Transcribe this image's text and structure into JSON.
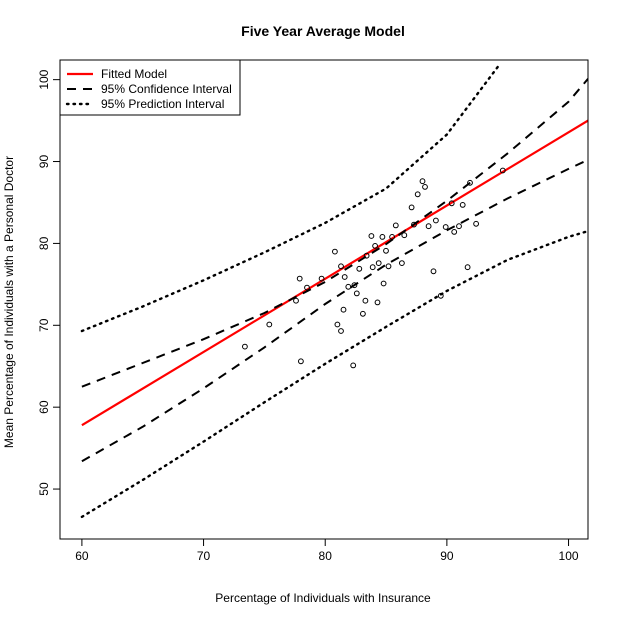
{
  "chart_data": {
    "type": "scatter",
    "title": "Five Year Average Model",
    "xlabel": "Percentage of Individuals with Insurance",
    "ylabel": "Mean Percentage of Individuals with a Personal Doctor",
    "xlim": [
      58.2,
      101.6
    ],
    "ylim": [
      43.9,
      102.4
    ],
    "xticks": [
      60,
      70,
      80,
      90,
      100
    ],
    "yticks": [
      50,
      60,
      70,
      80,
      90,
      100
    ],
    "grid": false,
    "legend_position": "top-left",
    "legend": [
      {
        "label": "Fitted Model",
        "style": "solid",
        "color": "#ff0000"
      },
      {
        "label": "95% Confidence Interval",
        "style": "dashed",
        "color": "#000000"
      },
      {
        "label": "95% Prediction Interval",
        "style": "dotted",
        "color": "#000000"
      }
    ],
    "points": {
      "x": [
        73.4,
        75.4,
        77.6,
        77.9,
        78.0,
        78.5,
        79.7,
        80.8,
        81.0,
        81.3,
        81.3,
        81.5,
        81.6,
        81.9,
        82.3,
        82.4,
        82.6,
        82.8,
        83.1,
        83.3,
        83.4,
        83.8,
        83.9,
        84.1,
        84.3,
        84.4,
        84.7,
        84.8,
        85.0,
        85.2,
        85.5,
        85.8,
        86.3,
        86.5,
        87.1,
        87.3,
        87.6,
        88.0,
        88.2,
        88.5,
        88.9,
        89.1,
        89.5,
        89.9,
        90.4,
        90.6,
        91.0,
        91.3,
        91.7,
        91.9,
        92.4,
        94.6
      ],
      "y": [
        67.4,
        70.1,
        73.0,
        75.7,
        65.6,
        74.6,
        75.7,
        79.0,
        70.1,
        77.2,
        69.3,
        71.9,
        75.9,
        74.7,
        65.1,
        74.9,
        73.9,
        76.9,
        71.4,
        73.0,
        78.5,
        80.9,
        77.1,
        79.7,
        72.8,
        77.6,
        80.8,
        75.1,
        79.1,
        77.2,
        80.8,
        82.2,
        77.6,
        81.0,
        84.4,
        82.3,
        86.0,
        87.6,
        86.9,
        82.1,
        76.6,
        82.8,
        73.6,
        82.0,
        84.9,
        81.4,
        82.1,
        84.7,
        77.1,
        87.4,
        82.4,
        88.9
      ]
    },
    "series": [
      {
        "name": "Fitted Model",
        "style": "solid",
        "x": [
          60,
          101.6
        ],
        "y": [
          57.8,
          95.0
        ]
      },
      {
        "name": "95% Confidence Interval",
        "style": "dashed",
        "x": [
          60,
          65,
          70,
          75,
          80,
          85,
          90,
          95,
          100,
          101.6
        ],
        "y": [
          53.4,
          57.6,
          62.3,
          67.3,
          72.6,
          77.4,
          81.6,
          85.5,
          89.1,
          90.2
        ]
      },
      {
        "name": "95% Confidence Interval",
        "style": "dashed",
        "x": [
          60,
          65,
          70,
          75,
          80,
          85,
          90,
          95,
          100,
          101.6
        ],
        "y": [
          62.5,
          65.4,
          68.3,
          71.5,
          75.3,
          79.9,
          85.2,
          91.0,
          97.3,
          100.1
        ]
      },
      {
        "name": "95% Prediction Interval",
        "style": "dotted",
        "x": [
          60,
          65,
          70,
          75,
          80,
          85,
          90,
          95,
          100,
          101.6
        ],
        "y": [
          46.6,
          51.1,
          55.8,
          60.6,
          65.3,
          69.8,
          74.2,
          78.0,
          80.8,
          81.5
        ]
      },
      {
        "name": "95% Prediction Interval",
        "style": "dotted",
        "x": [
          60,
          65,
          70,
          75,
          80,
          85,
          90,
          94.2
        ],
        "y": [
          69.3,
          72.3,
          75.5,
          78.9,
          82.5,
          86.7,
          93.3,
          101.6
        ]
      }
    ]
  }
}
